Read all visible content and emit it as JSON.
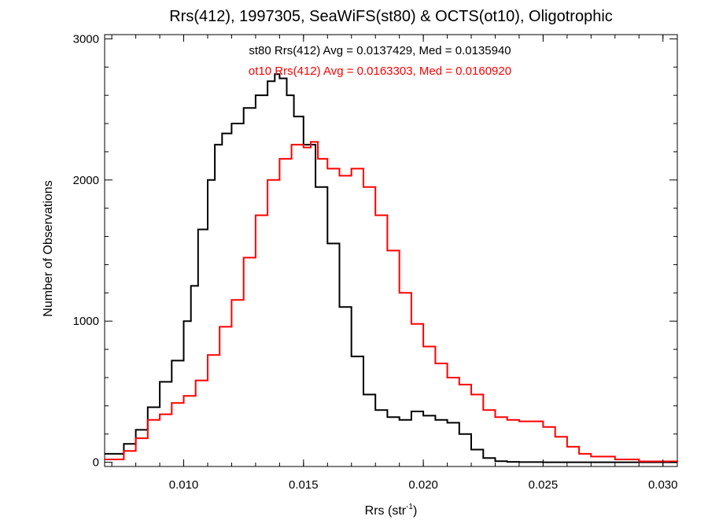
{
  "chart_data": {
    "type": "line",
    "title": "Rrs(412), 1997305, SeaWiFS(st80) & OCTS(ot10), Oligotrophic",
    "xlabel": "Rrs (str",
    "xlabel_sup": "-1",
    "xlabel_tail": ")",
    "ylabel": "Number of Observations",
    "xlim": [
      0.0067,
      0.0306
    ],
    "ylim": [
      -30,
      3030
    ],
    "xticks": [
      0.01,
      0.015,
      0.02,
      0.025,
      0.03
    ],
    "xtick_labels": [
      "0.010",
      "0.015",
      "0.020",
      "0.025",
      "0.030"
    ],
    "yticks": [
      0,
      1000,
      2000,
      3000
    ],
    "ytick_labels": [
      "0",
      "1000",
      "2000",
      "3000"
    ],
    "grid": false,
    "annotations": [
      {
        "text": "st80 Rrs(412) Avg = 0.0137429, Med = 0.0135940",
        "color": "#000000"
      },
      {
        "text": "ot10 Rrs(412) Avg = 0.0163303, Med = 0.0160920",
        "color": "#ff0000"
      }
    ],
    "series": [
      {
        "color": "#000000",
        "style": "step",
        "x": [
          0.0067,
          0.0075,
          0.008,
          0.0085,
          0.009,
          0.0095,
          0.01,
          0.0103,
          0.0106,
          0.011,
          0.0113,
          0.0116,
          0.012,
          0.0125,
          0.013,
          0.0135,
          0.0138,
          0.014,
          0.0143,
          0.0146,
          0.015,
          0.0155,
          0.016,
          0.0165,
          0.017,
          0.0175,
          0.018,
          0.0185,
          0.019,
          0.0195,
          0.02,
          0.0205,
          0.021,
          0.0215,
          0.022,
          0.0225,
          0.023,
          0.0235,
          0.024,
          0.025,
          0.026,
          0.027,
          0.028,
          0.0306
        ],
        "y": [
          60,
          130,
          230,
          390,
          570,
          720,
          1000,
          1250,
          1650,
          2000,
          2250,
          2330,
          2400,
          2510,
          2600,
          2700,
          2750,
          2720,
          2600,
          2450,
          2250,
          1950,
          1550,
          1100,
          750,
          480,
          370,
          320,
          300,
          360,
          330,
          300,
          280,
          200,
          90,
          30,
          8,
          3,
          1,
          0,
          0,
          0,
          0,
          0
        ]
      },
      {
        "color": "#ff0000",
        "style": "step",
        "x": [
          0.0067,
          0.0075,
          0.008,
          0.0085,
          0.009,
          0.0095,
          0.01,
          0.0105,
          0.011,
          0.0115,
          0.012,
          0.0125,
          0.013,
          0.0135,
          0.014,
          0.0145,
          0.015,
          0.0153,
          0.0156,
          0.016,
          0.0165,
          0.017,
          0.0175,
          0.018,
          0.0185,
          0.019,
          0.0195,
          0.02,
          0.0205,
          0.021,
          0.0215,
          0.022,
          0.0225,
          0.023,
          0.0235,
          0.024,
          0.0245,
          0.025,
          0.0255,
          0.026,
          0.0265,
          0.027,
          0.028,
          0.029,
          0.0306
        ],
        "y": [
          20,
          80,
          170,
          300,
          340,
          420,
          470,
          580,
          760,
          960,
          1150,
          1450,
          1750,
          2000,
          2150,
          2250,
          2230,
          2270,
          2150,
          2080,
          2030,
          2080,
          1950,
          1750,
          1500,
          1200,
          980,
          820,
          700,
          600,
          550,
          480,
          370,
          320,
          300,
          290,
          290,
          250,
          180,
          110,
          60,
          40,
          20,
          6,
          0
        ]
      }
    ]
  }
}
